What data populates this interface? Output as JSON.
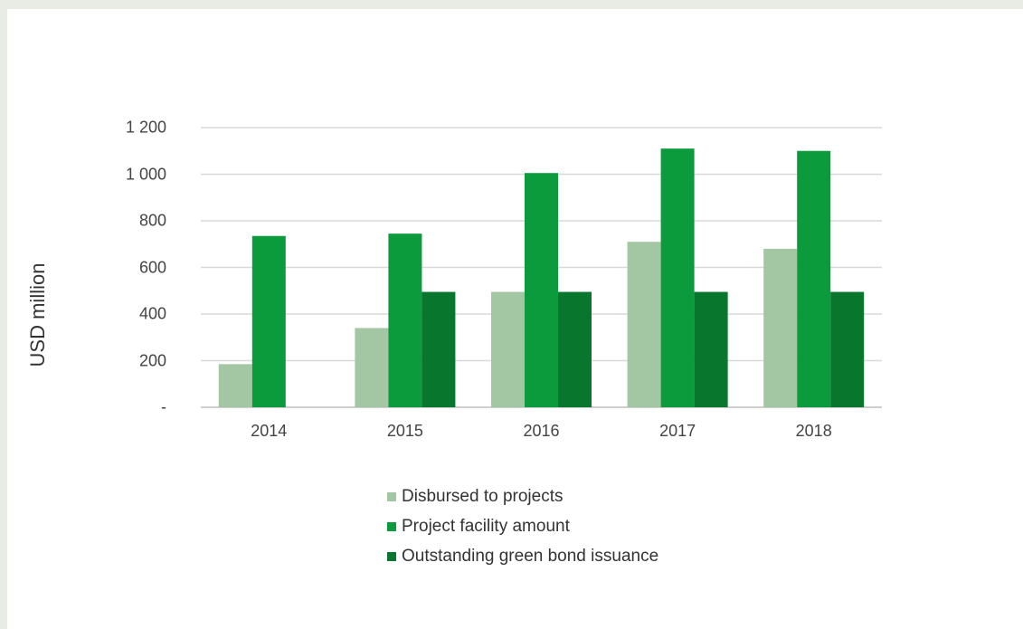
{
  "chart_data": {
    "type": "bar",
    "categories": [
      "2014",
      "2015",
      "2016",
      "2017",
      "2018"
    ],
    "ylabel": "USD million",
    "ylim": [
      0,
      1200
    ],
    "yticks": [
      {
        "value": 0,
        "label": "-"
      },
      {
        "value": 200,
        "label": "200"
      },
      {
        "value": 400,
        "label": "400"
      },
      {
        "value": 600,
        "label": "600"
      },
      {
        "value": 800,
        "label": "800"
      },
      {
        "value": 1000,
        "label": "1 000"
      },
      {
        "value": 1200,
        "label": "1 200"
      }
    ],
    "grid": true,
    "legend_position": "bottom",
    "series": [
      {
        "name": "Disbursed to projects",
        "color": "#a3c6a3",
        "values": [
          185,
          340,
          495,
          710,
          680
        ]
      },
      {
        "name": "Project facility amount",
        "color": "#0b9a3c",
        "values": [
          735,
          745,
          1005,
          1110,
          1100
        ]
      },
      {
        "name": "Outstanding green bond issuance",
        "color": "#08762c",
        "values": [
          null,
          495,
          495,
          495,
          495
        ]
      }
    ]
  }
}
